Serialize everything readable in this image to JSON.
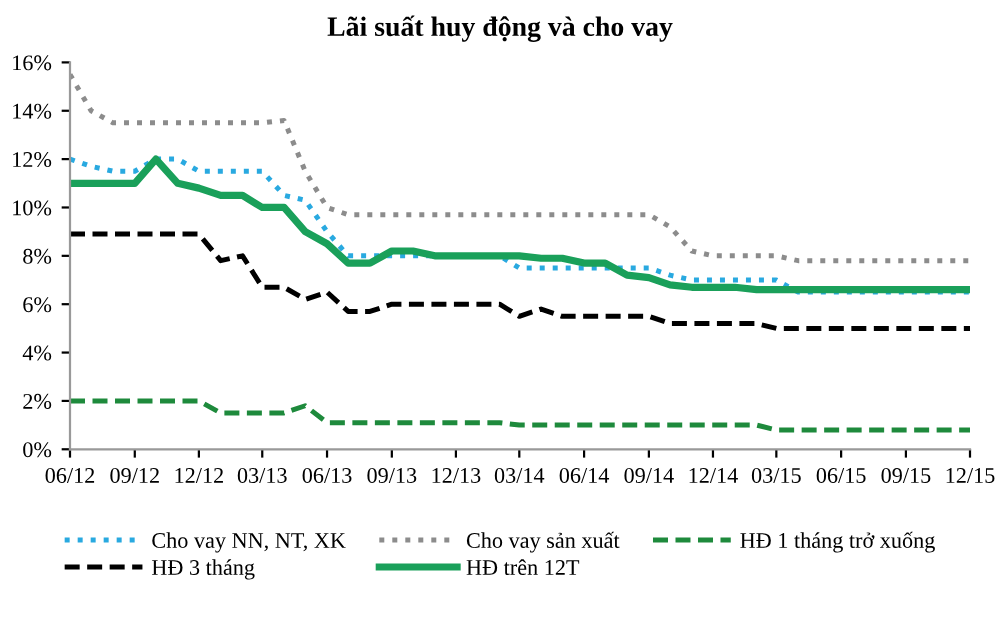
{
  "chart_data": {
    "type": "line",
    "title": "Lãi suất huy động và cho vay",
    "x": [
      "2012-06",
      "2012-07",
      "2012-08",
      "2012-09",
      "2012-10",
      "2012-11",
      "2012-12",
      "2013-01",
      "2013-02",
      "2013-03",
      "2013-04",
      "2013-05",
      "2013-06",
      "2013-07",
      "2013-08",
      "2013-09",
      "2013-10",
      "2013-11",
      "2013-12",
      "2014-01",
      "2014-02",
      "2014-03",
      "2014-04",
      "2014-05",
      "2014-06",
      "2014-07",
      "2014-08",
      "2014-09",
      "2014-10",
      "2014-11",
      "2014-12",
      "2015-01",
      "2015-02",
      "2015-03",
      "2015-04",
      "2015-05",
      "2015-06",
      "2015-07",
      "2015-08",
      "2015-09",
      "2015-10",
      "2015-11",
      "2015-12"
    ],
    "series": [
      {
        "name": "Cho vay NN, NT, XK",
        "color": "#29a9e0",
        "line_style": "dotted",
        "values": [
          12,
          11.7,
          11.5,
          11.5,
          12,
          12,
          11.5,
          11.5,
          11.5,
          11.5,
          10.5,
          10.3,
          9,
          8,
          8,
          8,
          8,
          8,
          8,
          8,
          8,
          7.5,
          7.5,
          7.5,
          7.5,
          7.5,
          7.5,
          7.5,
          7.2,
          7,
          7,
          7,
          7,
          7,
          6.5,
          6.5,
          6.5,
          6.5,
          6.5,
          6.5,
          6.5,
          6.5,
          6.5
        ]
      },
      {
        "name": "Cho vay sản xuất",
        "color": "#8c8c8c",
        "line_style": "dotted",
        "values": [
          15.5,
          14,
          13.5,
          13.5,
          13.5,
          13.5,
          13.5,
          13.5,
          13.5,
          13.5,
          13.6,
          11.5,
          10,
          9.7,
          9.7,
          9.7,
          9.7,
          9.7,
          9.7,
          9.7,
          9.7,
          9.7,
          9.7,
          9.7,
          9.7,
          9.7,
          9.7,
          9.7,
          9.2,
          8.2,
          8,
          8,
          8,
          8,
          7.8,
          7.8,
          7.8,
          7.8,
          7.8,
          7.8,
          7.8,
          7.8,
          7.8
        ]
      },
      {
        "name": "HĐ 1 tháng trở xuống",
        "color": "#1e8a3c",
        "line_style": "dashed",
        "values": [
          2,
          2,
          2,
          2,
          2,
          2,
          2,
          1.5,
          1.5,
          1.5,
          1.5,
          1.8,
          1.1,
          1.1,
          1.1,
          1.1,
          1.1,
          1.1,
          1.1,
          1.1,
          1.1,
          1,
          1,
          1,
          1,
          1,
          1,
          1,
          1,
          1,
          1,
          1,
          1,
          0.8,
          0.8,
          0.8,
          0.8,
          0.8,
          0.8,
          0.8,
          0.8,
          0.8,
          0.8
        ]
      },
      {
        "name": "HĐ 3 tháng",
        "color": "#000000",
        "line_style": "dashed",
        "values": [
          8.9,
          8.9,
          8.9,
          8.9,
          8.9,
          8.9,
          8.9,
          7.8,
          8,
          6.7,
          6.7,
          6.2,
          6.5,
          5.7,
          5.7,
          6,
          6,
          6,
          6,
          6,
          6,
          5.5,
          5.8,
          5.5,
          5.5,
          5.5,
          5.5,
          5.5,
          5.2,
          5.2,
          5.2,
          5.2,
          5.2,
          5,
          5,
          5,
          5,
          5,
          5,
          5,
          5,
          5,
          5
        ]
      },
      {
        "name": "HĐ trên 12T",
        "color": "#1aa05a",
        "line_style": "solid",
        "values": [
          11,
          11,
          11,
          11,
          12,
          11,
          10.8,
          10.5,
          10.5,
          10,
          10,
          9,
          8.5,
          7.7,
          7.7,
          8.2,
          8.2,
          8,
          8,
          8,
          8,
          8,
          7.9,
          7.9,
          7.7,
          7.7,
          7.2,
          7.1,
          6.8,
          6.7,
          6.7,
          6.7,
          6.6,
          6.6,
          6.6,
          6.6,
          6.6,
          6.6,
          6.6,
          6.6,
          6.6,
          6.6,
          6.6
        ]
      }
    ],
    "xlim": [
      "2012-06",
      "2015-12"
    ],
    "xticks": [
      {
        "value": "2012-06",
        "label": "06/12"
      },
      {
        "value": "2012-09",
        "label": "09/12"
      },
      {
        "value": "2012-12",
        "label": "12/12"
      },
      {
        "value": "2013-03",
        "label": "03/13"
      },
      {
        "value": "2013-06",
        "label": "06/13"
      },
      {
        "value": "2013-09",
        "label": "09/13"
      },
      {
        "value": "2013-12",
        "label": "12/13"
      },
      {
        "value": "2014-03",
        "label": "03/14"
      },
      {
        "value": "2014-06",
        "label": "06/14"
      },
      {
        "value": "2014-09",
        "label": "09/14"
      },
      {
        "value": "2014-12",
        "label": "12/14"
      },
      {
        "value": "2015-03",
        "label": "03/15"
      },
      {
        "value": "2015-06",
        "label": "06/15"
      },
      {
        "value": "2015-09",
        "label": "09/15"
      },
      {
        "value": "2015-12",
        "label": "12/15"
      }
    ],
    "ylim": [
      0,
      16
    ],
    "yticks": [
      {
        "value": 0,
        "label": "0%"
      },
      {
        "value": 2,
        "label": "2%"
      },
      {
        "value": 4,
        "label": "4%"
      },
      {
        "value": 6,
        "label": "6%"
      },
      {
        "value": 8,
        "label": "8%"
      },
      {
        "value": 10,
        "label": "10%"
      },
      {
        "value": 12,
        "label": "12%"
      },
      {
        "value": 14,
        "label": "14%"
      },
      {
        "value": 16,
        "label": "16%"
      }
    ],
    "grid": false,
    "legend": "bottom",
    "marker": "none"
  }
}
